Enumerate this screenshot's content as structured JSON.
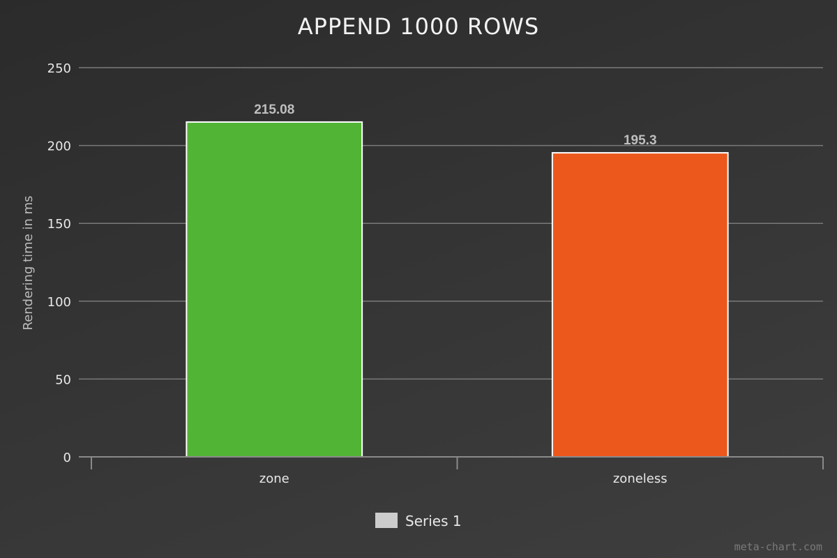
{
  "chart_data": {
    "type": "bar",
    "title": "APPEND 1000 ROWS",
    "ylabel": "Rendering time in ms",
    "xlabel": "",
    "categories": [
      "zone",
      "zoneless"
    ],
    "series": [
      {
        "name": "Series 1",
        "values": [
          215.08,
          195.3
        ],
        "colors": [
          "#52b435",
          "#ec581c"
        ]
      }
    ],
    "data_labels": [
      "215.08",
      "195.3"
    ],
    "ylim": [
      0,
      250
    ],
    "yticks": [
      0,
      50,
      100,
      150,
      200,
      250
    ],
    "grid": true,
    "legend": {
      "position": "bottom-center",
      "swatch_color": "#cccccc"
    },
    "bar_outline_color": "#ffffff",
    "credit": "meta-chart.com"
  }
}
